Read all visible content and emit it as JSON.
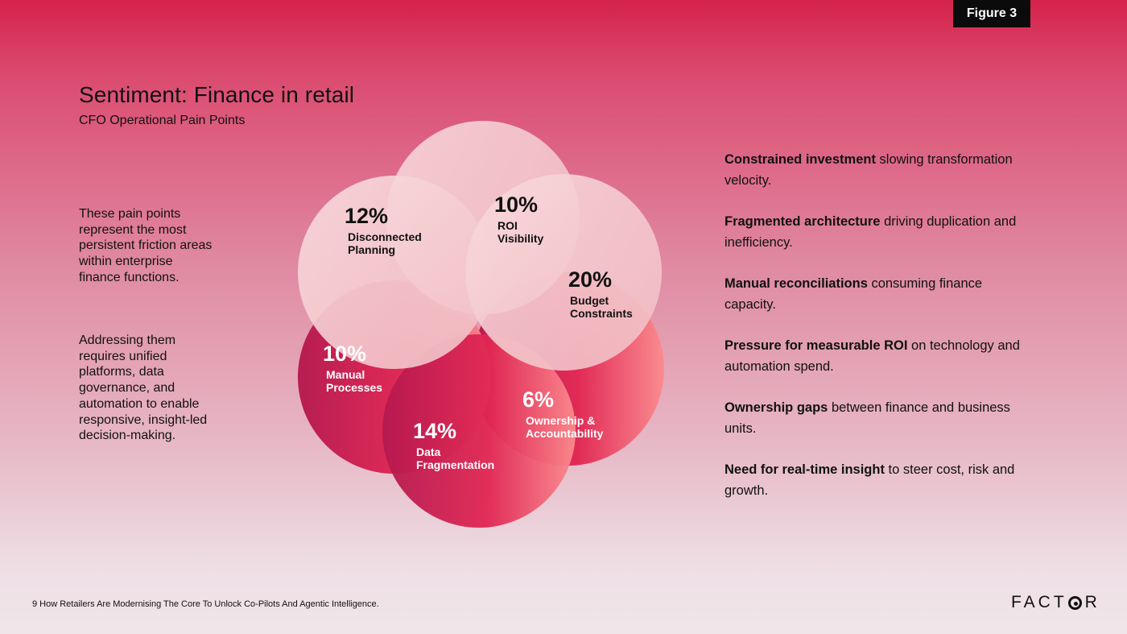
{
  "figure_tag": "Figure 3",
  "title": "Sentiment: Finance in retail",
  "subtitle": "CFO Operational Pain Points",
  "left_text": {
    "para1": "These pain points represent the most persistent friction areas within enterprise finance functions.",
    "para2": "Addressing them requires unified platforms, data governance, and automation to enable responsive, insight-led decision-making."
  },
  "segments": [
    {
      "name": "Disconnected Planning",
      "line1": "Disconnected",
      "line2": "Planning",
      "percent": "12%",
      "value": 12
    },
    {
      "name": "ROI Visibility",
      "line1": "ROI",
      "line2": "Visibility",
      "percent": "10%",
      "value": 10
    },
    {
      "name": "Budget Constraints",
      "line1": "Budget",
      "line2": "Constraints",
      "percent": "20%",
      "value": 20
    },
    {
      "name": "Ownership & Accountability",
      "line1": "Ownership &",
      "line2": "Accountability",
      "percent": "6%",
      "value": 6
    },
    {
      "name": "Data Fragmentation",
      "line1": "Data",
      "line2": "Fragmentation",
      "percent": "14%",
      "value": 14
    },
    {
      "name": "Manual Processes",
      "line1": "Manual",
      "line2": "Processes",
      "percent": "10%",
      "value": 10
    }
  ],
  "key_points": [
    {
      "bold": "Constrained investment",
      "rest": " slowing transformation velocity."
    },
    {
      "bold": "Fragmented architecture",
      "rest": " driving duplication and inefficiency."
    },
    {
      "bold": "Manual reconciliations",
      "rest": " consuming finance capacity."
    },
    {
      "bold": "Pressure for measurable ROI",
      "rest": " on technology and automation spend."
    },
    {
      "bold": "Ownership gaps",
      "rest": " between finance and business units."
    },
    {
      "bold": "Need for real-time insight",
      "rest": " to steer cost, risk and growth."
    }
  ],
  "footer": "9 How Retailers Are Modernising The Core To Unlock Co-Pilots And Agentic Intelligence.",
  "logo": {
    "pre": "FACT",
    "post": "R"
  }
}
